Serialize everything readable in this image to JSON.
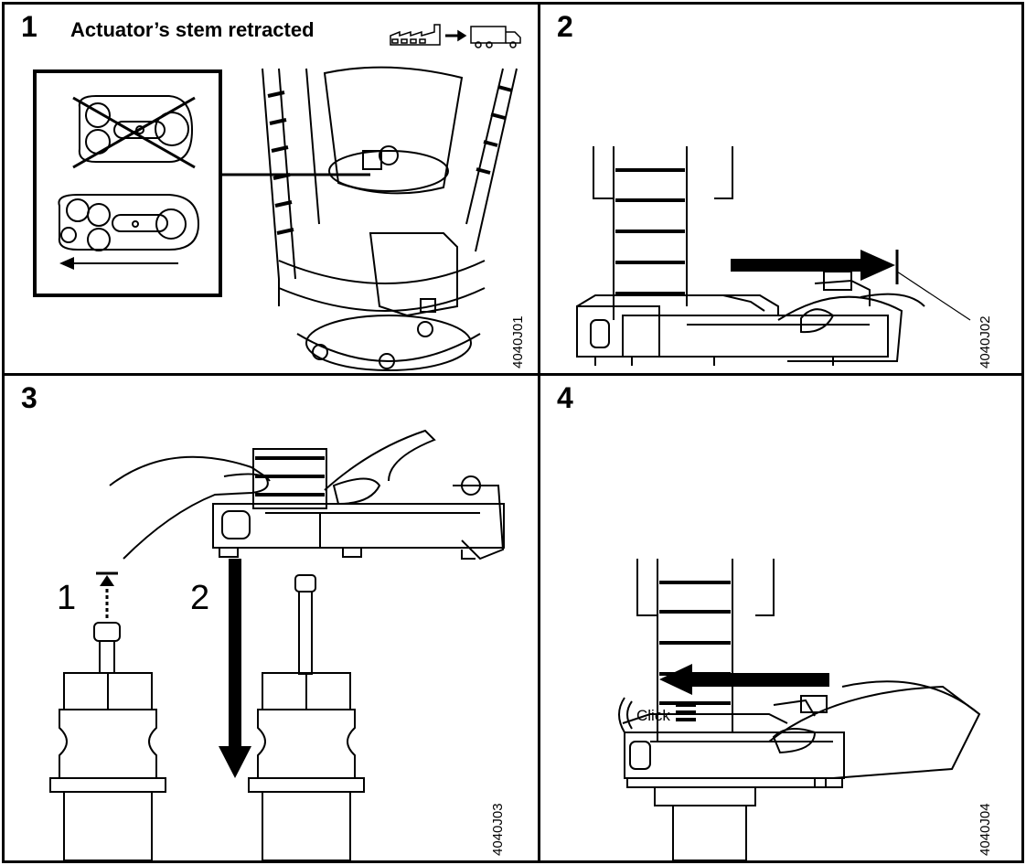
{
  "panels": [
    {
      "number": "1",
      "title": "Actuator’s stem retracted",
      "code": "4040J01"
    },
    {
      "number": "2",
      "code": "4040J02"
    },
    {
      "number": "3",
      "code": "4040J03",
      "substeps": [
        "1",
        "2"
      ]
    },
    {
      "number": "4",
      "code": "4040J04",
      "click_label": "Click"
    }
  ],
  "icons": {
    "factory_to_truck": "factory-to-truck-icon"
  }
}
